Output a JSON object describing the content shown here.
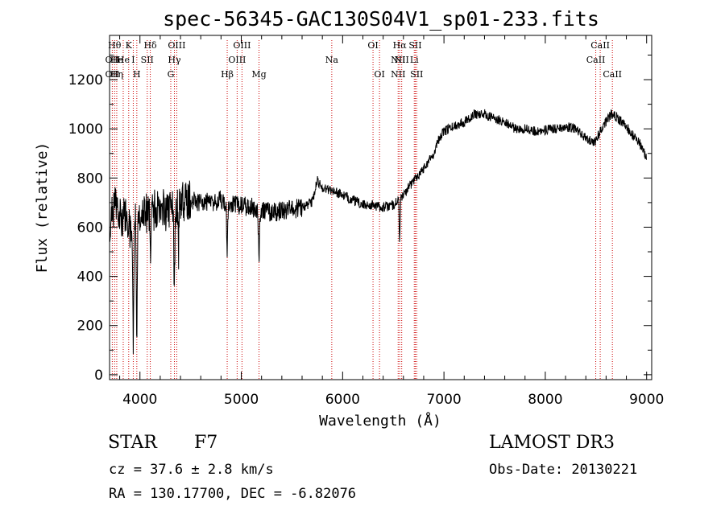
{
  "chart_data": {
    "type": "line",
    "title": "spec-56345-GAC130S04V1_sp01-233.fits",
    "xlabel": "Wavelength (Å)",
    "ylabel": "Flux (relative)",
    "xlim": [
      3700,
      9050
    ],
    "ylim": [
      -20,
      1380
    ],
    "xticks": [
      4000,
      5000,
      6000,
      7000,
      8000,
      9000
    ],
    "yticks": [
      0,
      200,
      400,
      600,
      800,
      1000,
      1200
    ],
    "line_color": "#000000",
    "marker_color": "#cc0000",
    "continuum": [
      [
        3700,
        600
      ],
      [
        3760,
        720
      ],
      [
        3800,
        650
      ],
      [
        3850,
        640
      ],
      [
        3900,
        600
      ],
      [
        3950,
        640
      ],
      [
        4000,
        650
      ],
      [
        4100,
        660
      ],
      [
        4200,
        680
      ],
      [
        4300,
        660
      ],
      [
        4400,
        700
      ],
      [
        4500,
        710
      ],
      [
        4600,
        700
      ],
      [
        4700,
        700
      ],
      [
        4800,
        710
      ],
      [
        4900,
        690
      ],
      [
        5000,
        690
      ],
      [
        5100,
        680
      ],
      [
        5200,
        670
      ],
      [
        5300,
        660
      ],
      [
        5400,
        665
      ],
      [
        5500,
        670
      ],
      [
        5600,
        680
      ],
      [
        5700,
        700
      ],
      [
        5750,
        790
      ],
      [
        5800,
        760
      ],
      [
        5900,
        750
      ],
      [
        6000,
        730
      ],
      [
        6100,
        710
      ],
      [
        6200,
        690
      ],
      [
        6300,
        690
      ],
      [
        6400,
        680
      ],
      [
        6500,
        690
      ],
      [
        6600,
        730
      ],
      [
        6700,
        790
      ],
      [
        6800,
        840
      ],
      [
        6850,
        870
      ],
      [
        6900,
        900
      ],
      [
        6950,
        960
      ],
      [
        7000,
        990
      ],
      [
        7100,
        1010
      ],
      [
        7200,
        1030
      ],
      [
        7300,
        1060
      ],
      [
        7400,
        1060
      ],
      [
        7500,
        1040
      ],
      [
        7600,
        1030
      ],
      [
        7700,
        1000
      ],
      [
        7800,
        1000
      ],
      [
        7900,
        990
      ],
      [
        8000,
        995
      ],
      [
        8100,
        1000
      ],
      [
        8200,
        1010
      ],
      [
        8300,
        1000
      ],
      [
        8400,
        960
      ],
      [
        8450,
        950
      ],
      [
        8500,
        950
      ],
      [
        8550,
        1000
      ],
      [
        8600,
        1030
      ],
      [
        8650,
        1060
      ],
      [
        8700,
        1050
      ],
      [
        8750,
        1030
      ],
      [
        8800,
        1010
      ],
      [
        8850,
        980
      ],
      [
        8900,
        960
      ],
      [
        8950,
        930
      ],
      [
        9000,
        880
      ]
    ],
    "absorption_features": [
      {
        "wave": 3934,
        "depth": 520,
        "width": 8
      },
      {
        "wave": 3969,
        "depth": 480,
        "width": 8
      },
      {
        "wave": 4102,
        "depth": 220,
        "width": 6
      },
      {
        "wave": 4340,
        "depth": 300,
        "width": 8
      },
      {
        "wave": 4380,
        "depth": 220,
        "width": 6
      },
      {
        "wave": 4861,
        "depth": 180,
        "width": 8
      },
      {
        "wave": 5175,
        "depth": 180,
        "width": 8
      },
      {
        "wave": 6563,
        "depth": 180,
        "width": 6
      }
    ],
    "line_markers": [
      {
        "wave": 3727,
        "row": 1,
        "label": "OII"
      },
      {
        "wave": 3727,
        "row": 2,
        "label": "OII"
      },
      {
        "wave": 3750,
        "row": 0,
        "label": "Hθ"
      },
      {
        "wave": 3771,
        "row": 1,
        "label": "He"
      },
      {
        "wave": 3771,
        "row": 2,
        "label": "Hη"
      },
      {
        "wave": 3835,
        "row": 1,
        "label": "He"
      },
      {
        "wave": 3889,
        "row": 0,
        "label": "K"
      },
      {
        "wave": 3934,
        "row": 1,
        "label": "I"
      },
      {
        "wave": 3969,
        "row": 2,
        "label": "H"
      },
      {
        "wave": 4072,
        "row": 1,
        "label": "SII"
      },
      {
        "wave": 4102,
        "row": 0,
        "label": "Hδ"
      },
      {
        "wave": 4304,
        "row": 2,
        "label": "G"
      },
      {
        "wave": 4340,
        "row": 1,
        "label": "Hγ"
      },
      {
        "wave": 4363,
        "row": 0,
        "label": "OIII"
      },
      {
        "wave": 4861,
        "row": 2,
        "label": "Hβ"
      },
      {
        "wave": 4959,
        "row": 1,
        "label": "OIII"
      },
      {
        "wave": 5007,
        "row": 0,
        "label": "OIII"
      },
      {
        "wave": 5175,
        "row": 2,
        "label": "Mg"
      },
      {
        "wave": 5893,
        "row": 1,
        "label": "Na"
      },
      {
        "wave": 6300,
        "row": 0,
        "label": "OI"
      },
      {
        "wave": 6364,
        "row": 2,
        "label": "OI"
      },
      {
        "wave": 6548,
        "row": 1,
        "label": "NII"
      },
      {
        "wave": 6548,
        "row": 2,
        "label": "NII"
      },
      {
        "wave": 6563,
        "row": 0,
        "label": "Hα"
      },
      {
        "wave": 6583,
        "row": 1,
        "label": "NII"
      },
      {
        "wave": 6707,
        "row": 1,
        "label": "Li"
      },
      {
        "wave": 6717,
        "row": 0,
        "label": "SII"
      },
      {
        "wave": 6731,
        "row": 2,
        "label": "SII"
      },
      {
        "wave": 8498,
        "row": 1,
        "label": "CaII"
      },
      {
        "wave": 8542,
        "row": 0,
        "label": "CaII"
      },
      {
        "wave": 8662,
        "row": 2,
        "label": "CaII"
      }
    ]
  },
  "info": {
    "object_class": "STAR",
    "subclass": "F7",
    "redshift_text": "cz = 37.6 ± 2.8 km/s",
    "coords_text": "RA = 130.17700, DEC =  -6.82076",
    "survey": "LAMOST DR3",
    "obs_date": "Obs-Date: 20130221"
  }
}
